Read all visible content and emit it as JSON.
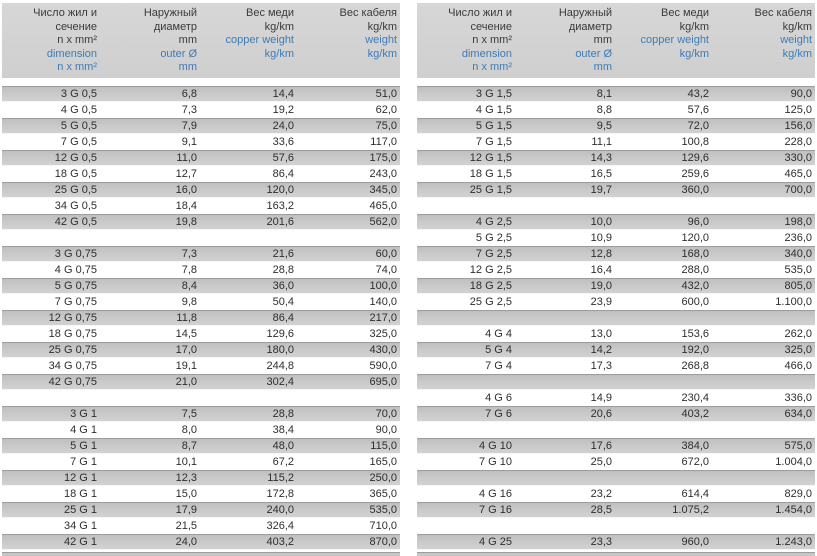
{
  "colors": {
    "accent_blue": "#3d7cb8",
    "row_gray": "#c9c9c9",
    "row_gray_edge": "#9d9d9d",
    "header_gray": "#d2d2d2"
  },
  "header": {
    "columns": [
      {
        "ru": [
          "Число жил и",
          "сечение",
          "n x mm²"
        ],
        "en": [
          "dimension",
          "n x mm²"
        ]
      },
      {
        "ru": [
          "Наружный",
          "диаметр",
          "mm"
        ],
        "en": [
          "outer Ø",
          "mm"
        ]
      },
      {
        "ru": [
          "Вес меди",
          "kg/km"
        ],
        "en": [
          "copper weight",
          "kg/km"
        ]
      },
      {
        "ru": [
          "Вес кабеля",
          "kg/km"
        ],
        "en": [
          "weight",
          "kg/km"
        ]
      }
    ]
  },
  "tables": [
    {
      "name": "left",
      "groups": [
        [
          [
            "3 G 0,5",
            "6,8",
            "14,4",
            "51,0"
          ],
          [
            "4 G 0,5",
            "7,3",
            "19,2",
            "62,0"
          ],
          [
            "5 G 0,5",
            "7,9",
            "24,0",
            "75,0"
          ],
          [
            "7 G 0,5",
            "9,1",
            "33,6",
            "117,0"
          ],
          [
            "12 G 0,5",
            "11,0",
            "57,6",
            "175,0"
          ],
          [
            "18 G 0,5",
            "12,7",
            "86,4",
            "243,0"
          ],
          [
            "25 G 0,5",
            "16,0",
            "120,0",
            "345,0"
          ],
          [
            "34 G 0,5",
            "18,4",
            "163,2",
            "465,0"
          ],
          [
            "42 G 0,5",
            "19,8",
            "201,6",
            "562,0"
          ]
        ],
        [
          [
            "3 G 0,75",
            "7,3",
            "21,6",
            "60,0"
          ],
          [
            "4 G 0,75",
            "7,8",
            "28,8",
            "74,0"
          ],
          [
            "5 G 0,75",
            "8,4",
            "36,0",
            "100,0"
          ],
          [
            "7 G 0,75",
            "9,8",
            "50,4",
            "140,0"
          ],
          [
            "12 G 0,75",
            "11,8",
            "86,4",
            "217,0"
          ],
          [
            "18 G 0,75",
            "14,5",
            "129,6",
            "325,0"
          ],
          [
            "25 G 0,75",
            "17,0",
            "180,0",
            "430,0"
          ],
          [
            "34 G 0,75",
            "19,1",
            "244,8",
            "590,0"
          ],
          [
            "42 G 0,75",
            "21,0",
            "302,4",
            "695,0"
          ]
        ],
        [
          [
            "3 G 1",
            "7,5",
            "28,8",
            "70,0"
          ],
          [
            "4 G 1",
            "8,0",
            "38,4",
            "90,0"
          ],
          [
            "5 G 1",
            "8,7",
            "48,0",
            "115,0"
          ],
          [
            "7 G 1",
            "10,1",
            "67,2",
            "165,0"
          ],
          [
            "12 G 1",
            "12,3",
            "115,2",
            "250,0"
          ],
          [
            "18 G 1",
            "15,0",
            "172,8",
            "365,0"
          ],
          [
            "25 G 1",
            "17,9",
            "240,0",
            "535,0"
          ],
          [
            "34 G 1",
            "21,5",
            "326,4",
            "710,0"
          ],
          [
            "42 G 1",
            "24,0",
            "403,2",
            "870,0"
          ]
        ]
      ]
    },
    {
      "name": "right",
      "groups": [
        [
          [
            "3 G 1,5",
            "8,1",
            "43,2",
            "90,0"
          ],
          [
            "4 G 1,5",
            "8,8",
            "57,6",
            "125,0"
          ],
          [
            "5 G 1,5",
            "9,5",
            "72,0",
            "156,0"
          ],
          [
            "7 G 1,5",
            "11,1",
            "100,8",
            "228,0"
          ],
          [
            "12 G 1,5",
            "14,3",
            "129,6",
            "330,0"
          ],
          [
            "18 G 1,5",
            "16,5",
            "259,6",
            "465,0"
          ],
          [
            "25 G 1,5",
            "19,7",
            "360,0",
            "700,0"
          ]
        ],
        [
          [
            "4 G 2,5",
            "10,0",
            "96,0",
            "198,0"
          ],
          [
            "5 G 2,5",
            "10,9",
            "120,0",
            "236,0"
          ],
          [
            "7 G 2,5",
            "12,8",
            "168,0",
            "340,0"
          ],
          [
            "12 G 2,5",
            "16,4",
            "288,0",
            "535,0"
          ],
          [
            "18 G 2,5",
            "19,0",
            "432,0",
            "805,0"
          ],
          [
            "25 G 2,5",
            "23,9",
            "600,0",
            "1.100,0"
          ]
        ],
        [
          [
            "4 G 4",
            "13,0",
            "153,6",
            "262,0"
          ],
          [
            "5 G 4",
            "14,2",
            "192,0",
            "325,0"
          ],
          [
            "7 G 4",
            "17,3",
            "268,8",
            "466,0"
          ]
        ],
        [
          [
            "4 G 6",
            "14,9",
            "230,4",
            "336,0"
          ],
          [
            "7 G 6",
            "20,6",
            "403,2",
            "634,0"
          ]
        ],
        [
          [
            "4 G 10",
            "17,6",
            "384,0",
            "575,0"
          ],
          [
            "7 G 10",
            "25,0",
            "672,0",
            "1.004,0"
          ]
        ],
        [
          [
            "4 G 16",
            "23,2",
            "614,4",
            "829,0"
          ],
          [
            "7 G 16",
            "28,5",
            "1.075,2",
            "1.454,0"
          ]
        ],
        [
          [
            "4 G 25",
            "23,3",
            "960,0",
            "1.243,0"
          ]
        ]
      ]
    }
  ]
}
